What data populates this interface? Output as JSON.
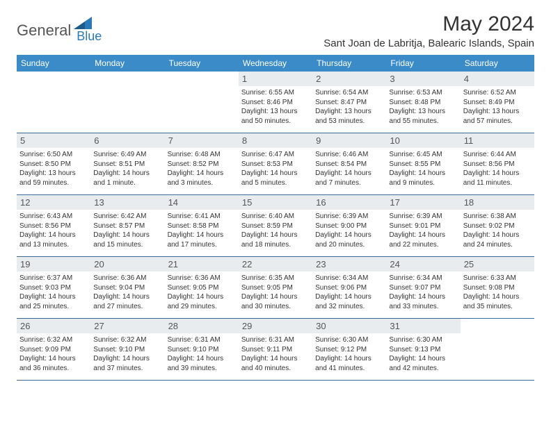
{
  "brand": {
    "part1": "General",
    "part2": "Blue"
  },
  "title": "May 2024",
  "location": "Sant Joan de Labritja, Balearic Islands, Spain",
  "colors": {
    "header_bg": "#3b8bc8",
    "daynum_bg": "#e9ecef",
    "rule": "#3b6a9a",
    "brand_blue": "#2a7ab8"
  },
  "weekdays": [
    "Sunday",
    "Monday",
    "Tuesday",
    "Wednesday",
    "Thursday",
    "Friday",
    "Saturday"
  ],
  "weeks": [
    [
      {
        "n": "",
        "sr": "",
        "ss": "",
        "dl": ""
      },
      {
        "n": "",
        "sr": "",
        "ss": "",
        "dl": ""
      },
      {
        "n": "",
        "sr": "",
        "ss": "",
        "dl": ""
      },
      {
        "n": "1",
        "sr": "Sunrise: 6:55 AM",
        "ss": "Sunset: 8:46 PM",
        "dl": "Daylight: 13 hours and 50 minutes."
      },
      {
        "n": "2",
        "sr": "Sunrise: 6:54 AM",
        "ss": "Sunset: 8:47 PM",
        "dl": "Daylight: 13 hours and 53 minutes."
      },
      {
        "n": "3",
        "sr": "Sunrise: 6:53 AM",
        "ss": "Sunset: 8:48 PM",
        "dl": "Daylight: 13 hours and 55 minutes."
      },
      {
        "n": "4",
        "sr": "Sunrise: 6:52 AM",
        "ss": "Sunset: 8:49 PM",
        "dl": "Daylight: 13 hours and 57 minutes."
      }
    ],
    [
      {
        "n": "5",
        "sr": "Sunrise: 6:50 AM",
        "ss": "Sunset: 8:50 PM",
        "dl": "Daylight: 13 hours and 59 minutes."
      },
      {
        "n": "6",
        "sr": "Sunrise: 6:49 AM",
        "ss": "Sunset: 8:51 PM",
        "dl": "Daylight: 14 hours and 1 minute."
      },
      {
        "n": "7",
        "sr": "Sunrise: 6:48 AM",
        "ss": "Sunset: 8:52 PM",
        "dl": "Daylight: 14 hours and 3 minutes."
      },
      {
        "n": "8",
        "sr": "Sunrise: 6:47 AM",
        "ss": "Sunset: 8:53 PM",
        "dl": "Daylight: 14 hours and 5 minutes."
      },
      {
        "n": "9",
        "sr": "Sunrise: 6:46 AM",
        "ss": "Sunset: 8:54 PM",
        "dl": "Daylight: 14 hours and 7 minutes."
      },
      {
        "n": "10",
        "sr": "Sunrise: 6:45 AM",
        "ss": "Sunset: 8:55 PM",
        "dl": "Daylight: 14 hours and 9 minutes."
      },
      {
        "n": "11",
        "sr": "Sunrise: 6:44 AM",
        "ss": "Sunset: 8:56 PM",
        "dl": "Daylight: 14 hours and 11 minutes."
      }
    ],
    [
      {
        "n": "12",
        "sr": "Sunrise: 6:43 AM",
        "ss": "Sunset: 8:56 PM",
        "dl": "Daylight: 14 hours and 13 minutes."
      },
      {
        "n": "13",
        "sr": "Sunrise: 6:42 AM",
        "ss": "Sunset: 8:57 PM",
        "dl": "Daylight: 14 hours and 15 minutes."
      },
      {
        "n": "14",
        "sr": "Sunrise: 6:41 AM",
        "ss": "Sunset: 8:58 PM",
        "dl": "Daylight: 14 hours and 17 minutes."
      },
      {
        "n": "15",
        "sr": "Sunrise: 6:40 AM",
        "ss": "Sunset: 8:59 PM",
        "dl": "Daylight: 14 hours and 18 minutes."
      },
      {
        "n": "16",
        "sr": "Sunrise: 6:39 AM",
        "ss": "Sunset: 9:00 PM",
        "dl": "Daylight: 14 hours and 20 minutes."
      },
      {
        "n": "17",
        "sr": "Sunrise: 6:39 AM",
        "ss": "Sunset: 9:01 PM",
        "dl": "Daylight: 14 hours and 22 minutes."
      },
      {
        "n": "18",
        "sr": "Sunrise: 6:38 AM",
        "ss": "Sunset: 9:02 PM",
        "dl": "Daylight: 14 hours and 24 minutes."
      }
    ],
    [
      {
        "n": "19",
        "sr": "Sunrise: 6:37 AM",
        "ss": "Sunset: 9:03 PM",
        "dl": "Daylight: 14 hours and 25 minutes."
      },
      {
        "n": "20",
        "sr": "Sunrise: 6:36 AM",
        "ss": "Sunset: 9:04 PM",
        "dl": "Daylight: 14 hours and 27 minutes."
      },
      {
        "n": "21",
        "sr": "Sunrise: 6:36 AM",
        "ss": "Sunset: 9:05 PM",
        "dl": "Daylight: 14 hours and 29 minutes."
      },
      {
        "n": "22",
        "sr": "Sunrise: 6:35 AM",
        "ss": "Sunset: 9:05 PM",
        "dl": "Daylight: 14 hours and 30 minutes."
      },
      {
        "n": "23",
        "sr": "Sunrise: 6:34 AM",
        "ss": "Sunset: 9:06 PM",
        "dl": "Daylight: 14 hours and 32 minutes."
      },
      {
        "n": "24",
        "sr": "Sunrise: 6:34 AM",
        "ss": "Sunset: 9:07 PM",
        "dl": "Daylight: 14 hours and 33 minutes."
      },
      {
        "n": "25",
        "sr": "Sunrise: 6:33 AM",
        "ss": "Sunset: 9:08 PM",
        "dl": "Daylight: 14 hours and 35 minutes."
      }
    ],
    [
      {
        "n": "26",
        "sr": "Sunrise: 6:32 AM",
        "ss": "Sunset: 9:09 PM",
        "dl": "Daylight: 14 hours and 36 minutes."
      },
      {
        "n": "27",
        "sr": "Sunrise: 6:32 AM",
        "ss": "Sunset: 9:10 PM",
        "dl": "Daylight: 14 hours and 37 minutes."
      },
      {
        "n": "28",
        "sr": "Sunrise: 6:31 AM",
        "ss": "Sunset: 9:10 PM",
        "dl": "Daylight: 14 hours and 39 minutes."
      },
      {
        "n": "29",
        "sr": "Sunrise: 6:31 AM",
        "ss": "Sunset: 9:11 PM",
        "dl": "Daylight: 14 hours and 40 minutes."
      },
      {
        "n": "30",
        "sr": "Sunrise: 6:30 AM",
        "ss": "Sunset: 9:12 PM",
        "dl": "Daylight: 14 hours and 41 minutes."
      },
      {
        "n": "31",
        "sr": "Sunrise: 6:30 AM",
        "ss": "Sunset: 9:13 PM",
        "dl": "Daylight: 14 hours and 42 minutes."
      },
      {
        "n": "",
        "sr": "",
        "ss": "",
        "dl": ""
      }
    ]
  ]
}
